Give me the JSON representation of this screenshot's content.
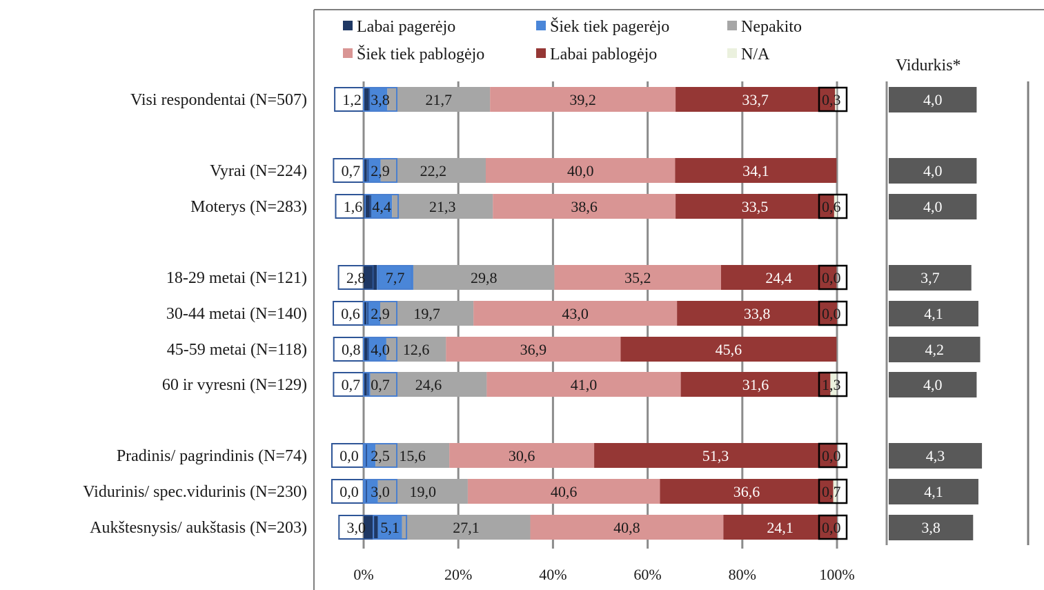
{
  "chart_data": {
    "type": "bar",
    "stacked": true,
    "orientation": "horizontal",
    "categories": [
      "Visi respondentai (N=507)",
      "Vyrai (N=224)",
      "Moterys (N=283)",
      "18-29 metai (N=121)",
      "30-44 metai (N=140)",
      "45-59 metai (N=118)",
      "60 ir vyresni (N=129)",
      "Pradinis/ pagrindinis (N=74)",
      "Vidurinis/ spec.vidurinis (N=230)",
      "Aukštesnysis/ aukštasis (N=203)"
    ],
    "series": [
      {
        "name": "Labai pagerėjo",
        "color": "#1f3864",
        "values": [
          1.2,
          0.7,
          1.6,
          2.8,
          0.6,
          0.8,
          0.7,
          0.0,
          0.0,
          3.0
        ],
        "labels": [
          "1,2",
          "0,7",
          "1,6",
          "2,8",
          "0,6",
          "0,8",
          "0,7",
          "0,0",
          "0,0",
          "3,0"
        ]
      },
      {
        "name": "Šiek tiek pagerėjo",
        "color": "#4a86d8",
        "values": [
          3.8,
          2.9,
          4.4,
          7.7,
          2.9,
          4.0,
          0.7,
          2.5,
          3.0,
          5.1
        ],
        "labels": [
          "3,8",
          "2,9",
          "4,4",
          "7,7",
          "2,9",
          "4,0",
          "0,7",
          "2,5",
          "3,0",
          "5,1"
        ]
      },
      {
        "name": "Nepakito",
        "color": "#a6a6a6",
        "values": [
          21.7,
          22.2,
          21.3,
          29.8,
          19.7,
          12.6,
          24.6,
          15.6,
          19.0,
          27.1
        ],
        "labels": [
          "21,7",
          "22,2",
          "21,3",
          "29,8",
          "19,7",
          "12,6",
          "24,6",
          "15,6",
          "19,0",
          "27,1"
        ]
      },
      {
        "name": "Šiek tiek pablogėjo",
        "color": "#d99594",
        "values": [
          39.2,
          40.0,
          38.6,
          35.2,
          43.0,
          36.9,
          41.0,
          30.6,
          40.6,
          40.8
        ],
        "labels": [
          "39,2",
          "40,0",
          "38,6",
          "35,2",
          "43,0",
          "36,9",
          "41,0",
          "30,6",
          "40,6",
          "40,8"
        ]
      },
      {
        "name": "Labai pablogėjo",
        "color": "#953735",
        "values": [
          33.7,
          34.1,
          33.5,
          24.4,
          33.8,
          45.6,
          31.6,
          51.3,
          36.6,
          24.1
        ],
        "labels": [
          "33,7",
          "34,1",
          "33,5",
          "24,4",
          "33,8",
          "45,6",
          "31,6",
          "51,3",
          "36,6",
          "24,1"
        ]
      },
      {
        "name": "N/A",
        "color": "#ebf1de",
        "values": [
          0.3,
          0.0,
          0.6,
          0.0,
          0.0,
          0.0,
          1.3,
          0.0,
          0.7,
          0.0
        ],
        "labels": [
          "0,3",
          "",
          "0,6",
          "0,0",
          "0,0",
          "",
          "1,3",
          "0,0",
          "0,7",
          "0,0"
        ]
      }
    ],
    "xlim": [
      0,
      100
    ],
    "x_ticks": [
      "0%",
      "20%",
      "40%",
      "60%",
      "80%",
      "100%"
    ],
    "grid": true,
    "legend_position": "top",
    "average": {
      "title": "Vidurkis*",
      "color": "#595959",
      "values": [
        4.0,
        4.0,
        4.0,
        3.7,
        4.1,
        4.2,
        4.0,
        4.3,
        4.1,
        3.8
      ],
      "labels": [
        "4,0",
        "4,0",
        "4,0",
        "3,7",
        "4,1",
        "4,2",
        "4,0",
        "4,3",
        "4,1",
        "3,8"
      ]
    }
  }
}
